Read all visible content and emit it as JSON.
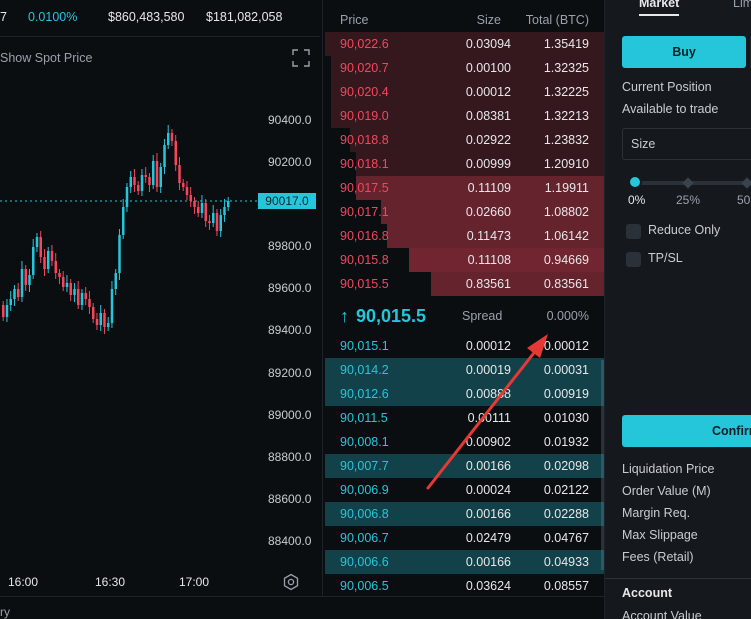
{
  "stats": {
    "funding_cut": "7",
    "funding_rate": "0.0100%",
    "volume": "$860,483,580",
    "open_interest": "$181,082,058"
  },
  "chart": {
    "show_spot_label": "Show Spot Price",
    "y_ticks": [
      "90400.0",
      "90200.0",
      "89800.0",
      "89600.0",
      "89400.0",
      "89200.0",
      "89000.0",
      "88800.0",
      "88600.0",
      "88400.0"
    ],
    "price_tag": "90017.0",
    "x_ticks": [
      "16:00",
      "16:30",
      "17:00"
    ],
    "bottom_cut": "ry"
  },
  "orderbook": {
    "headers": {
      "price": "Price",
      "size": "Size",
      "total": "Total (BTC)"
    },
    "asks": [
      {
        "price": "90,022.6",
        "size": "0.03094",
        "total": "1.35419",
        "depth": 1.0
      },
      {
        "price": "90,020.7",
        "size": "0.00100",
        "total": "1.32325",
        "depth": 0.98
      },
      {
        "price": "90,020.4",
        "size": "0.00012",
        "total": "1.32225",
        "depth": 0.98
      },
      {
        "price": "90,019.0",
        "size": "0.08381",
        "total": "1.32213",
        "depth": 0.98
      },
      {
        "price": "90,018.8",
        "size": "0.02922",
        "total": "1.23832",
        "depth": 0.91
      },
      {
        "price": "90,018.1",
        "size": "0.00999",
        "total": "1.20910",
        "depth": 0.89
      },
      {
        "price": "90,017.5",
        "size": "0.11109",
        "total": "1.19911",
        "depth": 0.89
      },
      {
        "price": "90,017.1",
        "size": "0.02660",
        "total": "1.08802",
        "depth": 0.8
      },
      {
        "price": "90,016.8",
        "size": "0.11473",
        "total": "1.06142",
        "depth": 0.78
      },
      {
        "price": "90,015.8",
        "size": "0.11108",
        "total": "0.94669",
        "depth": 0.7
      },
      {
        "price": "90,015.5",
        "size": "0.83561",
        "total": "0.83561",
        "depth": 0.62
      }
    ],
    "mid_price": "90,015.5",
    "mid_arrow": "↑",
    "spread_label": "Spread",
    "spread_value": "0.000%",
    "bids": [
      {
        "price": "90,015.1",
        "size": "0.00012",
        "total": "0.00012",
        "depth": 0.0
      },
      {
        "price": "90,014.2",
        "size": "0.00019",
        "total": "0.00031",
        "depth": 1.0
      },
      {
        "price": "90,012.6",
        "size": "0.00888",
        "total": "0.00919",
        "depth": 1.0
      },
      {
        "price": "90,011.5",
        "size": "0.00111",
        "total": "0.01030",
        "depth": 0.0
      },
      {
        "price": "90,008.1",
        "size": "0.00902",
        "total": "0.01932",
        "depth": 0.0
      },
      {
        "price": "90,007.7",
        "size": "0.00166",
        "total": "0.02098",
        "depth": 1.0
      },
      {
        "price": "90,006.9",
        "size": "0.00024",
        "total": "0.02122",
        "depth": 0.0
      },
      {
        "price": "90,006.8",
        "size": "0.00166",
        "total": "0.02288",
        "depth": 1.0
      },
      {
        "price": "90,006.7",
        "size": "0.02479",
        "total": "0.04767",
        "depth": 0.0
      },
      {
        "price": "90,006.6",
        "size": "0.00166",
        "total": "0.04933",
        "depth": 1.0
      },
      {
        "price": "90,006.5",
        "size": "0.03624",
        "total": "0.08557",
        "depth": 0.0
      }
    ]
  },
  "panel": {
    "tab_market": "Market",
    "tab_limit_cut": "Lim",
    "buy_label": "Buy",
    "current_position": "Current Position",
    "available_to_trade": "Available to trade",
    "size_placeholder": "Size",
    "slider_ticks": [
      "0%",
      "25%",
      "50"
    ],
    "slider_value": 0,
    "reduce_only": "Reduce Only",
    "tpsl": "TP/SL",
    "confirm_label": "Confirm",
    "info_rows": [
      "Liquidation Price",
      "Order Value (M)",
      "Margin Req.",
      "Max Slippage",
      "Fees (Retail)"
    ],
    "account_title": "Account",
    "account_value": "Account Value"
  },
  "colors": {
    "teal": "#26c6da",
    "red": "#f6465d",
    "background": "#0b0e11",
    "panel": "#15191e"
  }
}
